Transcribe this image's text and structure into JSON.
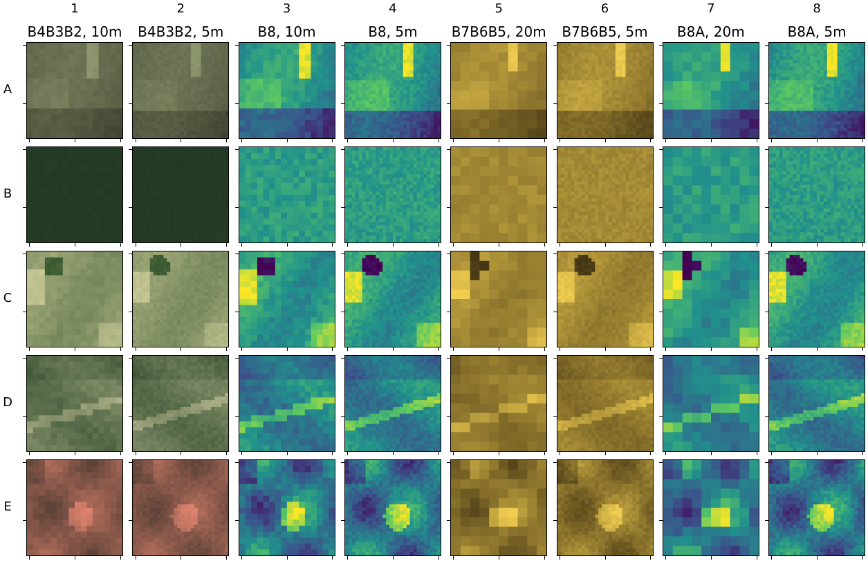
{
  "figure": {
    "columns": [
      {
        "num": "1",
        "title": "B4B3B2, 10m",
        "palette": "rgb",
        "res": "10m"
      },
      {
        "num": "2",
        "title": "B4B3B2, 5m",
        "palette": "rgb",
        "res": "5m"
      },
      {
        "num": "3",
        "title": "B8, 10m",
        "palette": "viridis",
        "res": "10m"
      },
      {
        "num": "4",
        "title": "B8, 5m",
        "palette": "viridis",
        "res": "5m"
      },
      {
        "num": "5",
        "title": "B7B6B5, 20m",
        "palette": "gold",
        "res": "20m"
      },
      {
        "num": "6",
        "title": "B7B6B5, 5m",
        "palette": "gold",
        "res": "5m"
      },
      {
        "num": "7",
        "title": "B8A, 20m",
        "palette": "viridis",
        "res": "20m"
      },
      {
        "num": "8",
        "title": "B8A, 5m",
        "palette": "viridis",
        "res": "5m"
      }
    ],
    "rows": [
      {
        "label": "A",
        "scene": "field-edge"
      },
      {
        "label": "B",
        "scene": "uniform-forest"
      },
      {
        "label": "C",
        "scene": "pond-meadow"
      },
      {
        "label": "D",
        "scene": "valley"
      },
      {
        "label": "E",
        "scene": "mixed-patches"
      }
    ],
    "colors": {
      "viridis_dark": "#3b3f8c",
      "viridis_mid": "#2a9a8a",
      "viridis_light": "#f2e43a",
      "gold": "#b9962f",
      "forest_rgb": "#1f3a22"
    }
  }
}
